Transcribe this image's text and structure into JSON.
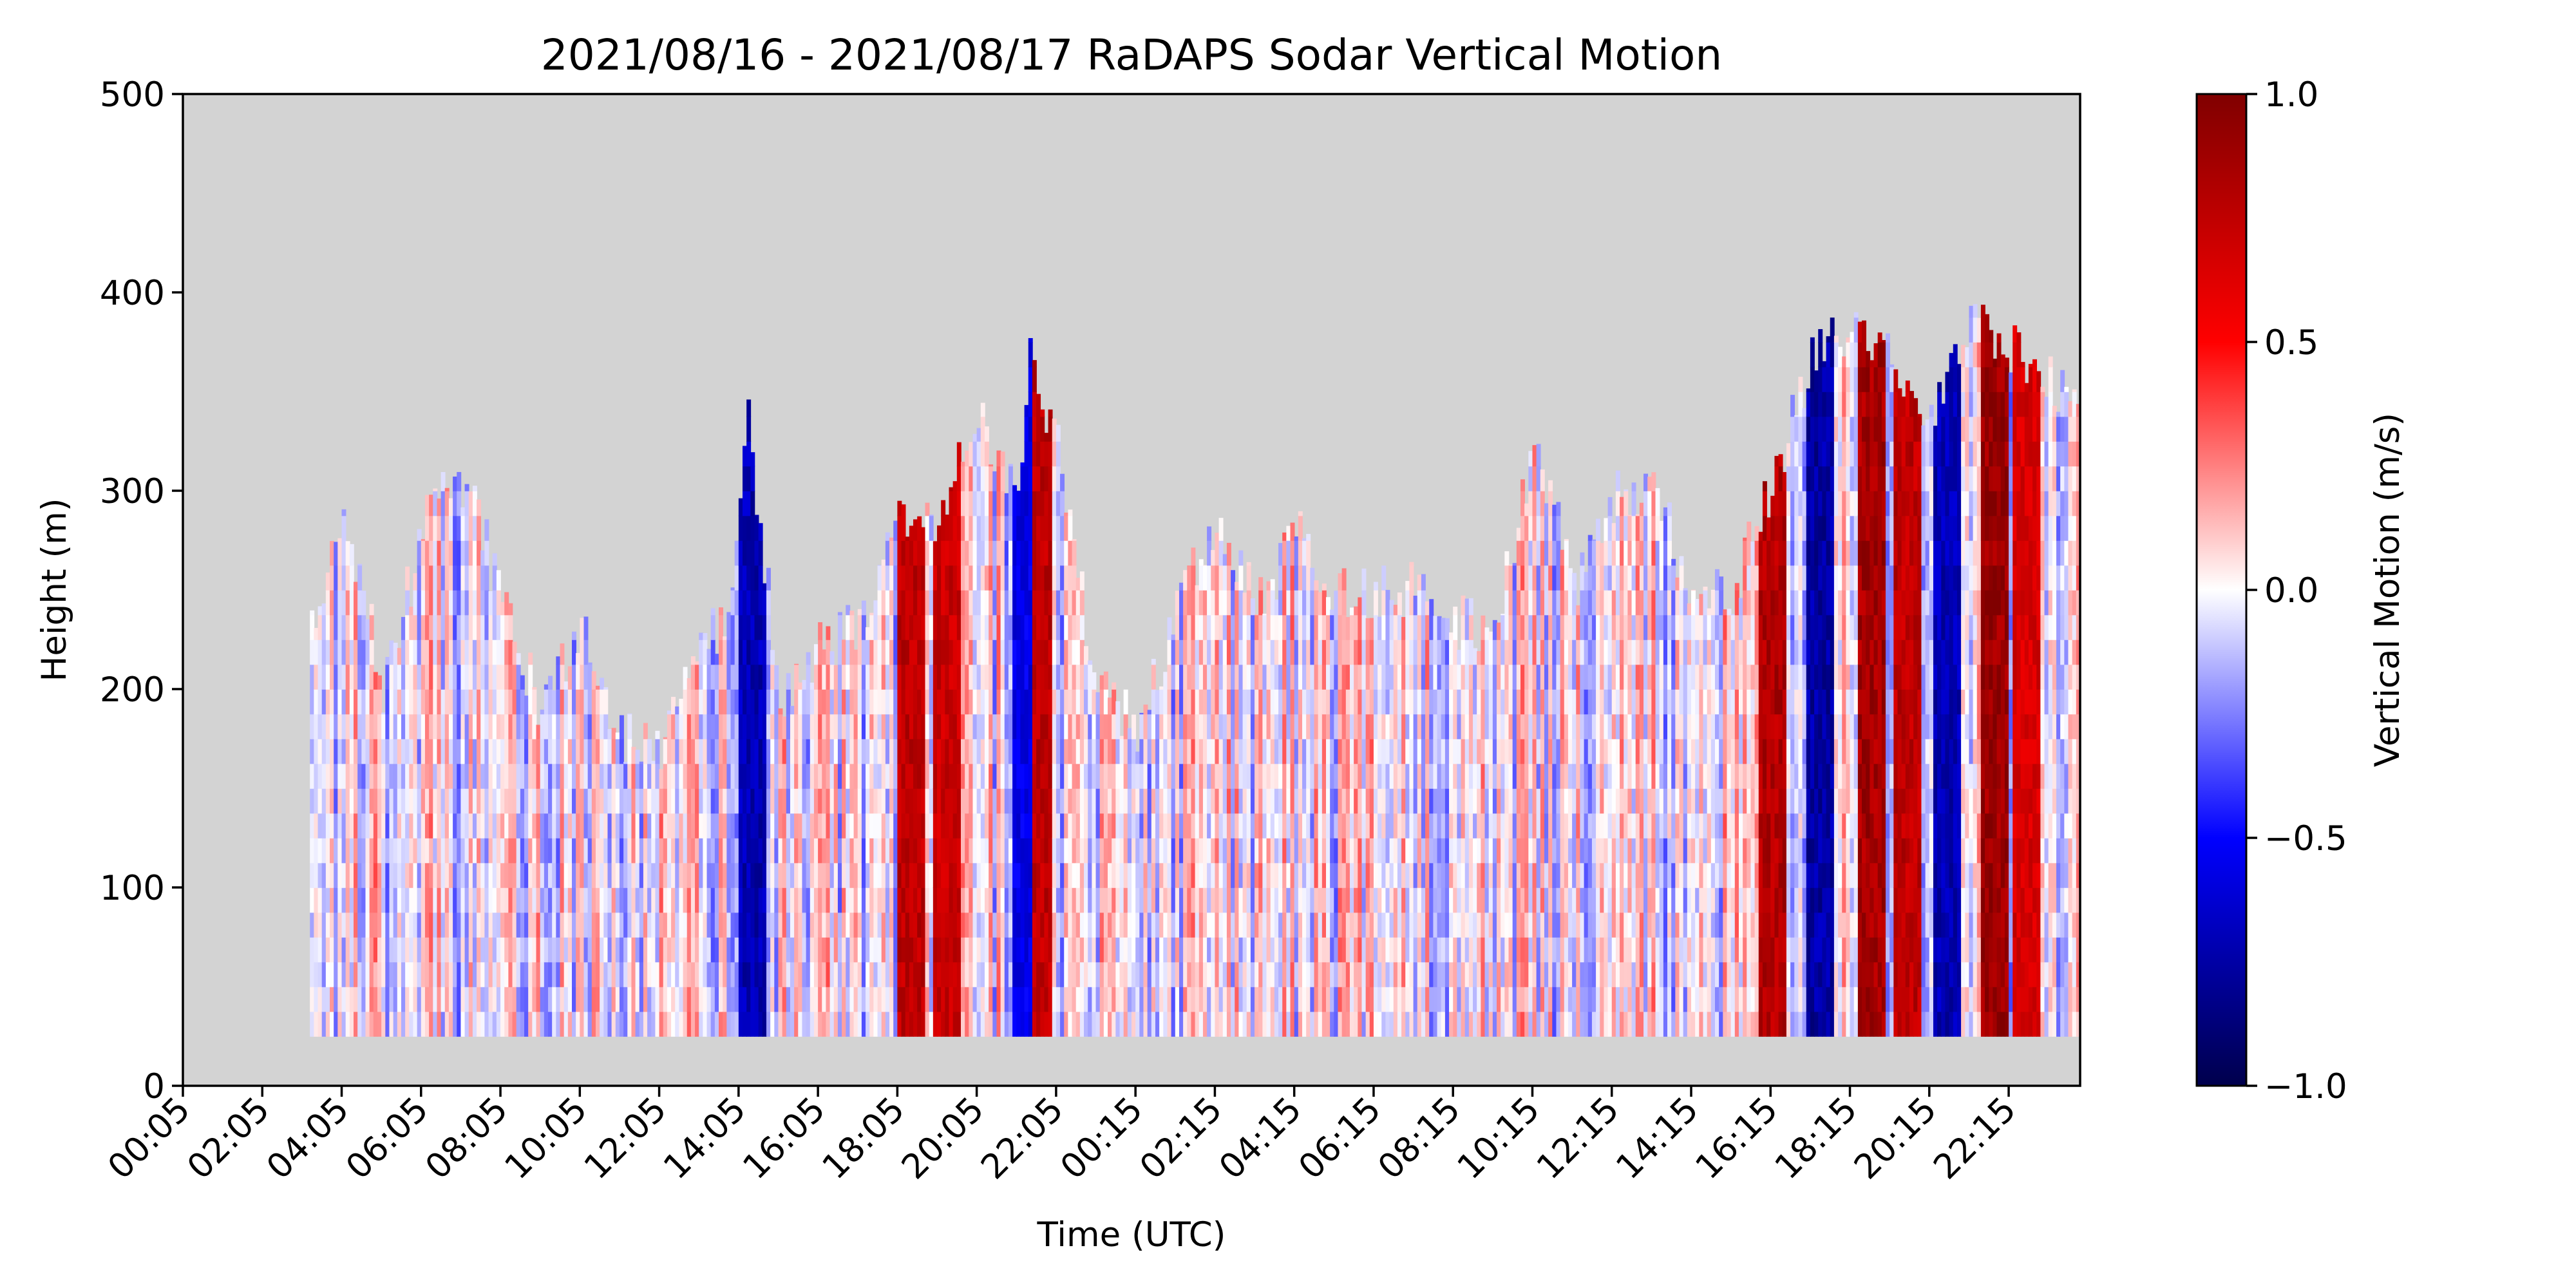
{
  "chart_data": {
    "type": "heatmap",
    "title": "2021/08/16 - 2021/08/17 RaDAPS Sodar Vertical Motion",
    "xlabel": "Time (UTC)",
    "ylabel": "Height (m)",
    "x_tick_labels": [
      "00:05",
      "02:05",
      "04:05",
      "06:05",
      "08:05",
      "10:05",
      "12:05",
      "14:05",
      "16:05",
      "18:05",
      "20:05",
      "22:05",
      "00:15",
      "02:15",
      "04:15",
      "06:15",
      "08:15",
      "10:15",
      "12:15",
      "14:15",
      "16:15",
      "18:15",
      "20:15",
      "22:15"
    ],
    "y_ticks": [
      0,
      100,
      200,
      300,
      400,
      500
    ],
    "ylim": [
      0,
      500
    ],
    "xlim_hours": [
      0,
      47.8
    ],
    "data_start_hours": 3.2,
    "min_height_m": 25,
    "background_color": "#d3d3d3",
    "colorbar": {
      "label": "Vertical Motion (m/s)",
      "range": [
        -1.0,
        1.0
      ],
      "ticks": [
        "1.0",
        "0.5",
        "0.0",
        "−0.5",
        "−1.0"
      ],
      "colormap": "seismic",
      "colors": [
        "#00004c",
        "#0000ff",
        "#ffffff",
        "#ff0000",
        "#800000"
      ]
    },
    "max_height_profile": {
      "hours": [
        3.2,
        4.0,
        5.0,
        6.0,
        6.5,
        7.3,
        8.0,
        9.0,
        10.0,
        11.0,
        12.0,
        13.0,
        13.8,
        14.2,
        15.0,
        16.0,
        17.0,
        18.0,
        19.0,
        20.0,
        21.0,
        21.3,
        22.0,
        23.0,
        24.0,
        25.0,
        26.0,
        27.0,
        28.0,
        29.0,
        30.0,
        31.0,
        32.0,
        33.0,
        34.0,
        35.0,
        36.0,
        37.0,
        38.0,
        39.0,
        40.0,
        41.0,
        42.0,
        43.0,
        44.0,
        45.0,
        46.0,
        47.0,
        47.8
      ],
      "heights_m": [
        235,
        295,
        200,
        280,
        310,
        295,
        240,
        190,
        230,
        175,
        165,
        220,
        240,
        340,
        190,
        220,
        235,
        290,
        280,
        340,
        300,
        370,
        320,
        200,
        180,
        240,
        290,
        240,
        280,
        250,
        250,
        250,
        235,
        230,
        325,
        250,
        295,
        300,
        250,
        250,
        300,
        370,
        385,
        370,
        330,
        385,
        370,
        355,
        340
      ]
    },
    "strong_events": [
      {
        "hours": 14.25,
        "value": -0.75
      },
      {
        "hours": 18.3,
        "value": 0.8
      },
      {
        "hours": 19.2,
        "value": 0.75
      },
      {
        "hours": 21.5,
        "value": 0.8
      },
      {
        "hours": 21.2,
        "value": -0.6
      },
      {
        "hours": 40.0,
        "value": 0.85
      },
      {
        "hours": 41.2,
        "value": -0.8
      },
      {
        "hours": 42.5,
        "value": 0.9
      },
      {
        "hours": 43.4,
        "value": 0.8
      },
      {
        "hours": 44.4,
        "value": -0.75
      },
      {
        "hours": 45.6,
        "value": 0.95
      },
      {
        "hours": 46.4,
        "value": 0.7
      }
    ]
  }
}
